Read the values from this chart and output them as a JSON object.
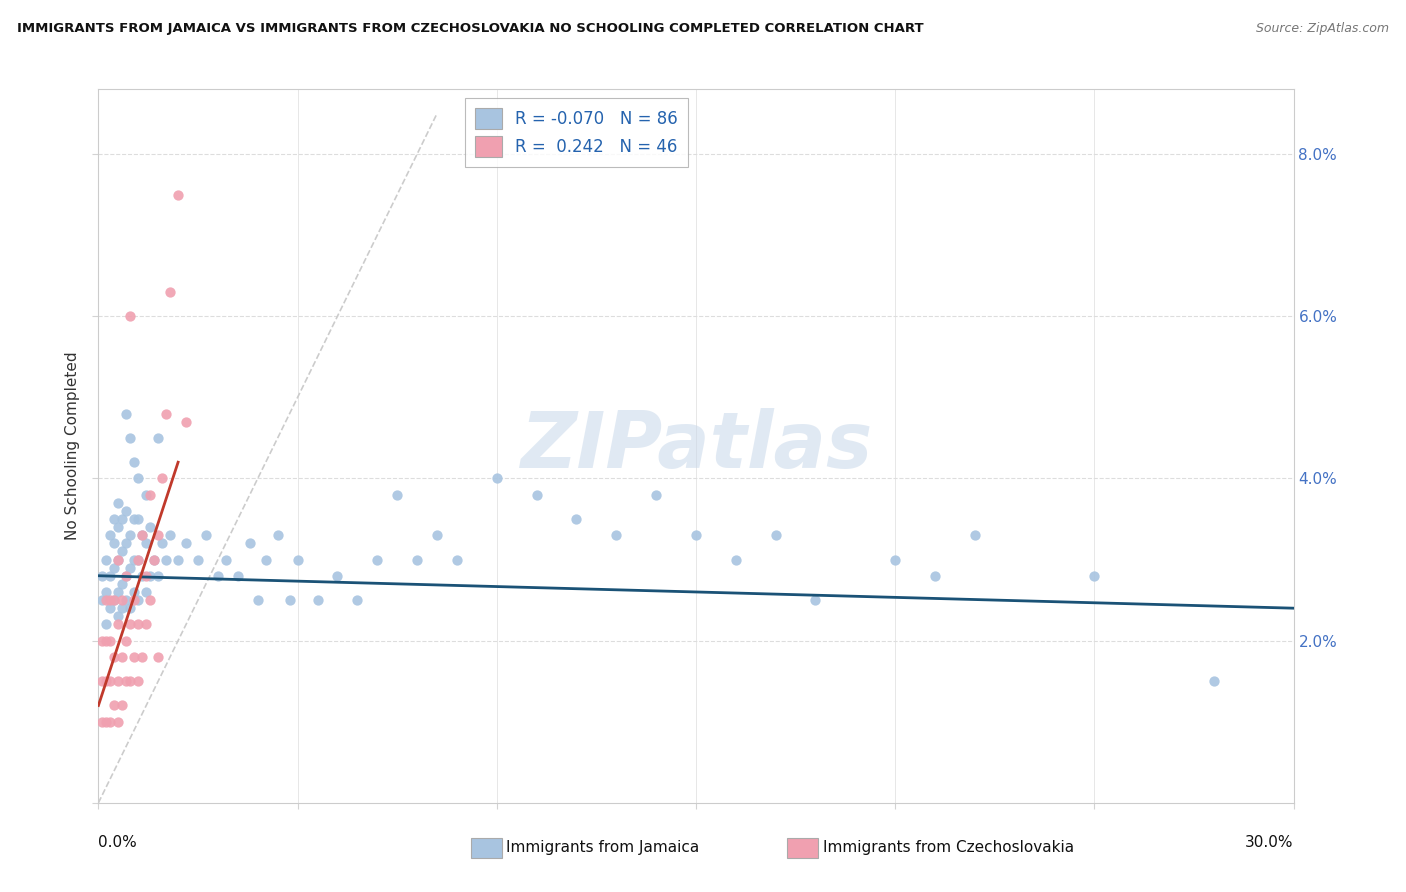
{
  "title": "IMMIGRANTS FROM JAMAICA VS IMMIGRANTS FROM CZECHOSLOVAKIA NO SCHOOLING COMPLETED CORRELATION CHART",
  "source": "Source: ZipAtlas.com",
  "ylabel": "No Schooling Completed",
  "legend_blue_r": "-0.070",
  "legend_blue_n": "86",
  "legend_pink_r": "0.242",
  "legend_pink_n": "46",
  "blue_color": "#a8c4e0",
  "pink_color": "#f0a0b0",
  "blue_line_color": "#1a5276",
  "pink_line_color": "#c0392b",
  "diag_color": "#cccccc",
  "watermark": "ZIPatlas",
  "xlim": [
    0.0,
    0.3
  ],
  "ylim": [
    0.0,
    0.088
  ],
  "blue_line_y0": 0.028,
  "blue_line_y1": 0.024,
  "pink_line_x0": 0.0,
  "pink_line_y0": 0.012,
  "pink_line_x1": 0.02,
  "pink_line_y1": 0.042,
  "jamaica_x": [
    0.001,
    0.001,
    0.002,
    0.002,
    0.002,
    0.003,
    0.003,
    0.003,
    0.004,
    0.004,
    0.004,
    0.004,
    0.005,
    0.005,
    0.005,
    0.005,
    0.005,
    0.006,
    0.006,
    0.006,
    0.006,
    0.007,
    0.007,
    0.007,
    0.007,
    0.008,
    0.008,
    0.008,
    0.009,
    0.009,
    0.009,
    0.01,
    0.01,
    0.01,
    0.011,
    0.011,
    0.012,
    0.012,
    0.013,
    0.013,
    0.014,
    0.015,
    0.016,
    0.017,
    0.018,
    0.02,
    0.022,
    0.025,
    0.027,
    0.03,
    0.032,
    0.035,
    0.038,
    0.04,
    0.042,
    0.045,
    0.048,
    0.05,
    0.055,
    0.06,
    0.065,
    0.07,
    0.075,
    0.08,
    0.085,
    0.09,
    0.1,
    0.11,
    0.12,
    0.13,
    0.14,
    0.15,
    0.16,
    0.17,
    0.18,
    0.2,
    0.21,
    0.22,
    0.25,
    0.28,
    0.007,
    0.008,
    0.009,
    0.01,
    0.012,
    0.015
  ],
  "jamaica_y": [
    0.025,
    0.028,
    0.022,
    0.026,
    0.03,
    0.024,
    0.028,
    0.033,
    0.025,
    0.029,
    0.032,
    0.035,
    0.023,
    0.026,
    0.03,
    0.034,
    0.037,
    0.024,
    0.027,
    0.031,
    0.035,
    0.025,
    0.028,
    0.032,
    0.036,
    0.024,
    0.029,
    0.033,
    0.026,
    0.03,
    0.035,
    0.025,
    0.03,
    0.035,
    0.028,
    0.033,
    0.026,
    0.032,
    0.028,
    0.034,
    0.03,
    0.028,
    0.032,
    0.03,
    0.033,
    0.03,
    0.032,
    0.03,
    0.033,
    0.028,
    0.03,
    0.028,
    0.032,
    0.025,
    0.03,
    0.033,
    0.025,
    0.03,
    0.025,
    0.028,
    0.025,
    0.03,
    0.038,
    0.03,
    0.033,
    0.03,
    0.04,
    0.038,
    0.035,
    0.033,
    0.038,
    0.033,
    0.03,
    0.033,
    0.025,
    0.03,
    0.028,
    0.033,
    0.028,
    0.015,
    0.048,
    0.045,
    0.042,
    0.04,
    0.038,
    0.045
  ],
  "czech_x": [
    0.001,
    0.001,
    0.001,
    0.002,
    0.002,
    0.002,
    0.002,
    0.003,
    0.003,
    0.003,
    0.003,
    0.004,
    0.004,
    0.004,
    0.005,
    0.005,
    0.005,
    0.005,
    0.006,
    0.006,
    0.006,
    0.007,
    0.007,
    0.007,
    0.008,
    0.008,
    0.008,
    0.009,
    0.009,
    0.01,
    0.01,
    0.01,
    0.011,
    0.011,
    0.012,
    0.012,
    0.013,
    0.013,
    0.014,
    0.015,
    0.015,
    0.016,
    0.017,
    0.018,
    0.02,
    0.022
  ],
  "czech_y": [
    0.01,
    0.015,
    0.02,
    0.01,
    0.015,
    0.02,
    0.025,
    0.01,
    0.015,
    0.02,
    0.025,
    0.012,
    0.018,
    0.025,
    0.01,
    0.015,
    0.022,
    0.03,
    0.012,
    0.018,
    0.025,
    0.015,
    0.02,
    0.028,
    0.015,
    0.022,
    0.06,
    0.018,
    0.025,
    0.015,
    0.022,
    0.03,
    0.018,
    0.033,
    0.022,
    0.028,
    0.025,
    0.038,
    0.03,
    0.018,
    0.033,
    0.04,
    0.048,
    0.063,
    0.075,
    0.047
  ]
}
